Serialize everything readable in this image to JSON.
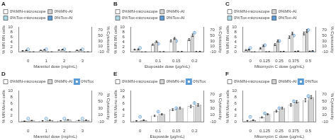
{
  "chart_data": [
    {
      "type": "bar",
      "title": "A",
      "xlabel": "Mannitol dose (mg/mL)",
      "ylabel": "% MN BN cells",
      "y2label": "% Cytotoxicity",
      "categories": [
        "0",
        "1",
        "2",
        "3"
      ],
      "ylim": [
        0,
        10
      ],
      "yticks": [
        0,
        2,
        4,
        6,
        8,
        10
      ],
      "y2lim": [
        -10,
        80
      ],
      "y2ticks": [
        -10,
        10,
        30,
        50,
        70
      ],
      "grid": false,
      "legend": "upper left",
      "series": [
        {
          "name": "0%MN-microscope",
          "color": "#ffffff",
          "values": [
            0.5,
            0.7,
            0.8,
            0.7
          ],
          "errors": [
            0.1,
            0.1,
            0.1,
            0.1
          ]
        },
        {
          "name": "0%MN-AI",
          "color": "#d3d3d3",
          "values": [
            0.7,
            0.9,
            1.0,
            0.9
          ],
          "errors": [
            0.1,
            0.1,
            0.1,
            0.1
          ]
        },
        {
          "name": "0%Tox-microscope",
          "color": "#add8e6",
          "values": [
            0.05,
            0.05,
            0.05,
            0.05
          ],
          "errors": [
            0.02,
            0.02,
            0.02,
            0.02
          ]
        },
        {
          "name": "0%Tox-AI",
          "color": "#5b9bd5",
          "values": [
            0.08,
            0.08,
            0.08,
            0.08
          ],
          "errors": [
            0.02,
            0.02,
            0.02,
            0.02
          ]
        },
        {
          "type": "scatter",
          "marker": "o",
          "axis": "y2",
          "color": "#5b9bd5",
          "values": [
            0,
            0,
            0,
            0
          ],
          "errors": [
            1,
            1,
            1,
            1
          ]
        }
      ]
    },
    {
      "type": "bar",
      "title": "B",
      "xlabel": "Etoposide dose (μg/mL)",
      "ylabel": "% MN BN cells",
      "y2label": "% Cytotoxicity",
      "categories": [
        "0",
        "0.1",
        "0.15",
        "0.2"
      ],
      "ylim": [
        0,
        10
      ],
      "yticks": [
        0,
        2,
        4,
        6,
        8,
        10
      ],
      "y2lim": [
        -10,
        80
      ],
      "y2ticks": [
        -10,
        10,
        30,
        50,
        70
      ],
      "grid": false,
      "legend": "upper left",
      "series": [
        {
          "name": "0%MN-microscope",
          "color": "#ffffff",
          "values": [
            1.0,
            3.0,
            4.5,
            5.0
          ],
          "errors": [
            0.2,
            0.3,
            0.4,
            0.4
          ]
        },
        {
          "name": "0%MN-AI",
          "color": "#d3d3d3",
          "values": [
            1.1,
            4.2,
            5.5,
            6.8
          ],
          "errors": [
            0.2,
            0.3,
            0.4,
            0.5
          ]
        },
        {
          "name": "0%Tox-microscope",
          "color": "#add8e6",
          "values": [
            0.05,
            0.1,
            0.15,
            0.2
          ],
          "errors": [
            0.02,
            0.03,
            0.04,
            0.04
          ]
        },
        {
          "name": "0%Tox-AI",
          "color": "#5b9bd5",
          "values": [
            0.08,
            0.15,
            0.2,
            0.25
          ],
          "errors": [
            0.02,
            0.03,
            0.04,
            0.04
          ]
        },
        {
          "type": "scatter",
          "marker": "o",
          "axis": "y2",
          "color": "#5b9bd5",
          "values": [
            5,
            20,
            30,
            60
          ],
          "errors": [
            2,
            3,
            4,
            5
          ]
        }
      ]
    },
    {
      "type": "bar",
      "title": "C",
      "xlabel": "Mitomycin C dose (μg/mL)",
      "ylabel": "% MN BN cells",
      "y2label": "% Cytotoxicity",
      "categories": [
        "0",
        "0.125",
        "0.25",
        "0.375",
        "0.5"
      ],
      "ylim": [
        0,
        10
      ],
      "yticks": [
        0,
        2,
        4,
        6,
        8,
        10
      ],
      "y2lim": [
        -10,
        80
      ],
      "y2ticks": [
        -10,
        10,
        30,
        50,
        70
      ],
      "grid": false,
      "legend": "upper left",
      "series": [
        {
          "name": "0%MN-microscope",
          "color": "#ffffff",
          "values": [
            0.8,
            1.5,
            3.0,
            6.0,
            7.5
          ],
          "errors": [
            0.2,
            0.3,
            0.4,
            0.5,
            0.6
          ]
        },
        {
          "name": "0%MN-AI",
          "color": "#d3d3d3",
          "values": [
            1.0,
            2.5,
            4.5,
            7.5,
            8.5
          ],
          "errors": [
            0.2,
            0.3,
            0.4,
            0.5,
            0.6
          ]
        },
        {
          "name": "0%Tox-microscope",
          "color": "#add8e6",
          "values": [
            0.05,
            0.1,
            0.15,
            0.25,
            0.35
          ],
          "errors": [
            0.02,
            0.03,
            0.04,
            0.05,
            0.06
          ]
        },
        {
          "name": "0%Tox-AI",
          "color": "#5b9bd5",
          "values": [
            0.08,
            0.15,
            0.25,
            0.4,
            0.5
          ],
          "errors": [
            0.02,
            0.03,
            0.04,
            0.05,
            0.06
          ]
        },
        {
          "type": "scatter",
          "marker": "o",
          "axis": "y2",
          "color": "#5b9bd5",
          "values": [
            5,
            15,
            30,
            50,
            70
          ],
          "errors": [
            2,
            3,
            4,
            5,
            6
          ]
        }
      ]
    },
    {
      "type": "bar",
      "title": "D",
      "xlabel": "Mannitol dose (mg/mL)",
      "ylabel": "% MN Mono cells",
      "y2label": "% Cytotoxicity",
      "categories": [
        "0",
        "1",
        "2",
        "3"
      ],
      "ylim": [
        0,
        10
      ],
      "yticks": [
        0,
        2,
        4,
        6,
        8,
        10
      ],
      "y2lim": [
        -10,
        80
      ],
      "y2ticks": [
        -10,
        10,
        30,
        50,
        70
      ],
      "grid": false,
      "legend": "upper left",
      "series": [
        {
          "name": "0%MN-microscope",
          "color": "#ffffff",
          "values": [
            0.3,
            0.4,
            0.4,
            0.5
          ],
          "errors": [
            0.05,
            0.06,
            0.06,
            0.07
          ]
        },
        {
          "name": "0%MN-AI",
          "color": "#d3d3d3",
          "values": [
            0.5,
            0.6,
            0.7,
            0.6
          ],
          "errors": [
            0.07,
            0.08,
            0.09,
            0.08
          ]
        },
        {
          "name": "0%Tox",
          "type": "scatter",
          "marker": "o",
          "axis": "y2",
          "color": "#5b9bd5",
          "values": [
            0,
            0,
            0,
            0
          ],
          "errors": [
            1,
            1,
            1,
            1
          ]
        }
      ]
    },
    {
      "type": "bar",
      "title": "E",
      "xlabel": "Etoposide (μg/mL)",
      "ylabel": "% MN Mono cells",
      "y2label": "% Cytotoxicity",
      "categories": [
        "0",
        "0.1",
        "0.15",
        "0.2"
      ],
      "ylim": [
        0,
        10
      ],
      "yticks": [
        0,
        2,
        4,
        6,
        8,
        10
      ],
      "y2lim": [
        -10,
        80
      ],
      "y2ticks": [
        -10,
        10,
        30,
        50,
        70
      ],
      "grid": false,
      "legend": "upper left",
      "series": [
        {
          "name": "0%MN-microscope",
          "color": "#ffffff",
          "values": [
            0.4,
            2.0,
            4.0,
            5.0
          ],
          "errors": [
            0.1,
            0.2,
            0.3,
            0.4
          ]
        },
        {
          "name": "0%MN-AI",
          "color": "#d3d3d3",
          "values": [
            0.6,
            2.5,
            4.5,
            5.5
          ],
          "errors": [
            0.1,
            0.2,
            0.3,
            0.4
          ]
        },
        {
          "name": "0%Tox",
          "type": "scatter",
          "marker": "o",
          "axis": "y2",
          "color": "#5b9bd5",
          "values": [
            5,
            20,
            30,
            45
          ],
          "errors": [
            2,
            3,
            4,
            5
          ]
        }
      ]
    },
    {
      "type": "bar",
      "title": "F",
      "xlabel": "Mitomycin C dose (μg/mL)",
      "ylabel": "% MN Mono cells",
      "y2label": "% Cytotoxicity",
      "categories": [
        "0",
        "0.125",
        "0.25",
        "0.375",
        "0.5"
      ],
      "ylim": [
        0,
        10
      ],
      "yticks": [
        0,
        2,
        4,
        6,
        8,
        10
      ],
      "y2lim": [
        -10,
        80
      ],
      "y2ticks": [
        -10,
        10,
        30,
        50,
        70
      ],
      "grid": false,
      "legend": "upper left",
      "series": [
        {
          "name": "0%MN-microscope",
          "color": "#ffffff",
          "values": [
            0.4,
            1.5,
            3.5,
            5.5,
            7.0
          ],
          "errors": [
            0.1,
            0.2,
            0.3,
            0.4,
            0.5
          ]
        },
        {
          "name": "0%MN-AI",
          "color": "#d3d3d3",
          "values": [
            0.6,
            2.5,
            4.5,
            6.5,
            8.0
          ],
          "errors": [
            0.1,
            0.2,
            0.3,
            0.4,
            0.5
          ]
        },
        {
          "name": "0%Tox",
          "type": "scatter",
          "marker": "o",
          "axis": "y2",
          "color": "#5b9bd5",
          "values": [
            5,
            15,
            30,
            50,
            65
          ],
          "errors": [
            2,
            3,
            4,
            5,
            6
          ]
        }
      ]
    }
  ]
}
